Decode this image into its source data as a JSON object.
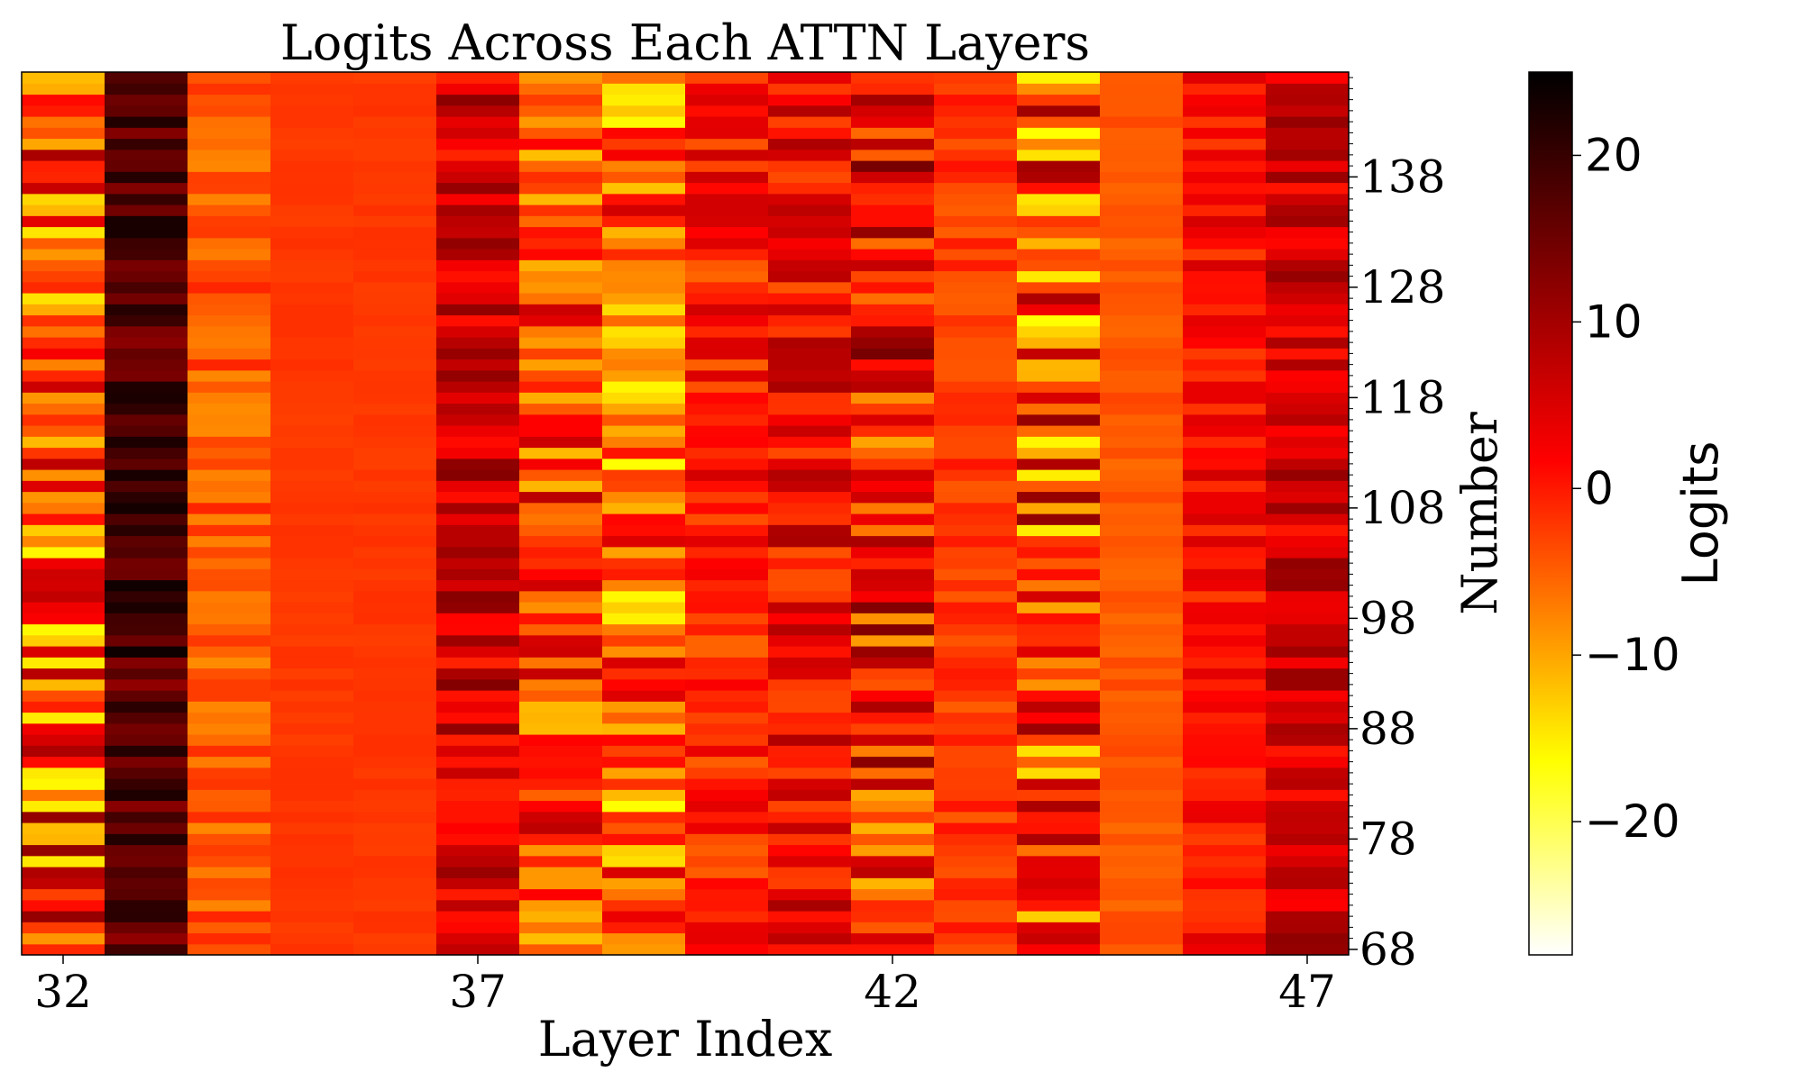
{
  "chart_data": {
    "type": "heatmap",
    "title": "Logits Across Each ATTN Layers",
    "xlabel": "Layer Index",
    "ylabel": "Number",
    "colorbar_label": "Logits",
    "colormap": "hot_r",
    "x": [
      32,
      33,
      34,
      35,
      36,
      37,
      38,
      39,
      40,
      41,
      42,
      43,
      44,
      45,
      46,
      47
    ],
    "x_ticks": [
      "32",
      "37",
      "42",
      "47"
    ],
    "y_range": [
      68,
      147
    ],
    "y_ticks": [
      "68",
      "78",
      "88",
      "98",
      "108",
      "118",
      "128",
      "138"
    ],
    "y_axis_side": "right",
    "color_range": [
      -28,
      25
    ],
    "colorbar_ticks": [
      "−20",
      "−10",
      "0",
      "10",
      "20"
    ],
    "column_summary": [
      {
        "layer": 32,
        "mean": 0,
        "spread": 14
      },
      {
        "layer": 33,
        "mean": 19,
        "spread": 5
      },
      {
        "layer": 34,
        "mean": -1,
        "spread": 4
      },
      {
        "layer": 35,
        "mean": 1.5,
        "spread": 0.6
      },
      {
        "layer": 36,
        "mean": 1.5,
        "spread": 0.6
      },
      {
        "layer": 37,
        "mean": 9,
        "spread": 6
      },
      {
        "layer": 38,
        "mean": 1,
        "spread": 10
      },
      {
        "layer": 39,
        "mean": -2,
        "spread": 12
      },
      {
        "layer": 40,
        "mean": 4,
        "spread": 6
      },
      {
        "layer": 41,
        "mean": 6,
        "spread": 7
      },
      {
        "layer": 42,
        "mean": 4,
        "spread": 12
      },
      {
        "layer": 43,
        "mean": 1.5,
        "spread": 3
      },
      {
        "layer": 44,
        "mean": 0,
        "spread": 14
      },
      {
        "layer": 45,
        "mean": -1,
        "spread": 1.5
      },
      {
        "layer": 46,
        "mean": 5,
        "spread": 4
      },
      {
        "layer": 47,
        "mean": 9,
        "spread": 5
      }
    ]
  }
}
